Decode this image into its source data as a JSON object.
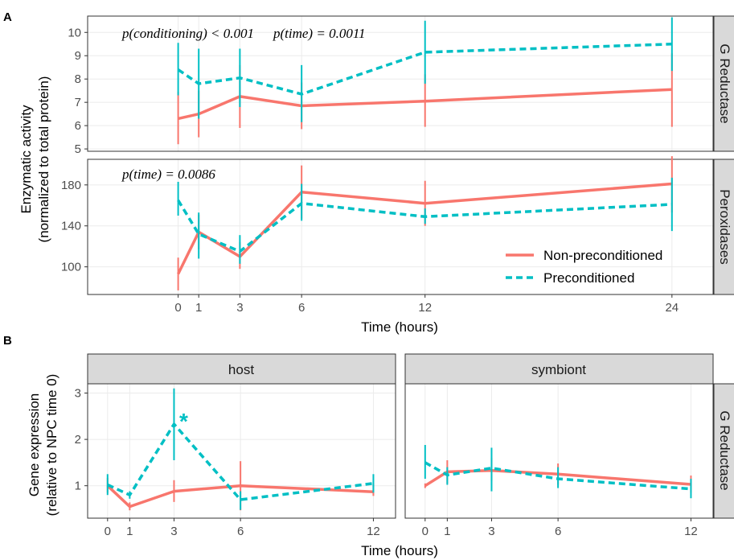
{
  "colors": {
    "npc": "#F8766D",
    "pc": "#00BFC4",
    "strip_bg": "#d9d9d9",
    "strip_border": "#333333",
    "panel_border": "#333333",
    "grid": "#ebebeb"
  },
  "panel_letters": {
    "a": "A",
    "b": "B"
  },
  "legend": {
    "npc": "Non-preconditioned",
    "pc": "Preconditioned"
  },
  "chart_data": [
    {
      "type": "line",
      "panel": "A",
      "facet": "G Reductase",
      "annotation": "p(conditioning) < 0.001",
      "annotation2": "p(time) = 0.0011",
      "ylabel_line1": "Enzymatic activity",
      "ylabel_line2": "(normalized to total protein)",
      "ylim": [
        4.9,
        10.7
      ],
      "yticks": [
        5,
        6,
        7,
        8,
        9,
        10
      ],
      "x": [
        0,
        1,
        3,
        6,
        12,
        24
      ],
      "series": [
        {
          "name": "Non-preconditioned",
          "values": [
            6.3,
            6.5,
            7.25,
            6.85,
            7.05,
            7.55
          ],
          "err_low": [
            5.2,
            5.5,
            5.9,
            5.85,
            5.95,
            5.95
          ],
          "err_high": [
            7.45,
            7.5,
            8.6,
            7.85,
            8.2,
            9.1
          ]
        },
        {
          "name": "Preconditioned",
          "values": [
            8.4,
            7.8,
            8.05,
            7.35,
            9.15,
            9.5
          ],
          "err_low": [
            7.3,
            6.3,
            6.8,
            6.15,
            7.8,
            8.35
          ],
          "err_high": [
            9.55,
            9.3,
            9.3,
            8.6,
            10.5,
            10.65
          ]
        }
      ]
    },
    {
      "type": "line",
      "panel": "A",
      "facet": "Peroxidases",
      "annotation": "p(time) = 0.0086",
      "ylim": [
        73,
        205
      ],
      "yticks": [
        100,
        140,
        180
      ],
      "xlabel": "Time (hours)",
      "xticks": [
        0,
        1,
        3,
        6,
        12,
        24
      ],
      "x": [
        0,
        1,
        3,
        6,
        12,
        24
      ],
      "series": [
        {
          "name": "Non-preconditioned",
          "values": [
            93,
            134,
            110,
            173,
            162,
            181
          ],
          "err_low": [
            77,
            117,
            98,
            147,
            140,
            153
          ],
          "err_high": [
            109,
            151,
            124,
            199,
            184,
            208
          ]
        },
        {
          "name": "Preconditioned",
          "values": [
            165,
            132,
            115,
            162,
            149,
            161
          ],
          "err_low": [
            150,
            108,
            103,
            145,
            142,
            135
          ],
          "err_high": [
            183,
            153,
            131,
            181,
            157,
            187
          ]
        }
      ]
    },
    {
      "type": "line",
      "panel": "B",
      "facet": "host",
      "ylabel_line1": "Gene expression",
      "ylabel_line2": "(relative to NPC time 0)",
      "ylim": [
        0.3,
        3.2
      ],
      "yticks": [
        1,
        2,
        3
      ],
      "xticks": [
        0,
        1,
        3,
        6,
        12
      ],
      "x": [
        0,
        1,
        3,
        6,
        12
      ],
      "annotation": "*",
      "series": [
        {
          "name": "Non-preconditioned",
          "values": [
            1.0,
            0.55,
            0.88,
            1.0,
            0.87
          ],
          "err_low": [
            0.85,
            0.47,
            0.65,
            0.47,
            0.78
          ],
          "err_high": [
            1.17,
            0.64,
            1.12,
            1.53,
            1.05
          ]
        },
        {
          "name": "Preconditioned",
          "values": [
            1.02,
            0.8,
            2.33,
            0.7,
            1.05
          ],
          "err_low": [
            0.8,
            0.72,
            1.55,
            0.48,
            0.85
          ],
          "err_high": [
            1.25,
            0.88,
            3.1,
            0.88,
            1.25
          ]
        }
      ]
    },
    {
      "type": "line",
      "panel": "B",
      "facet": "symbiont",
      "facet_right": "G Reductase",
      "xlabel": "Time (hours)",
      "ylim": [
        0.3,
        3.2
      ],
      "xticks": [
        0,
        1,
        3,
        6,
        12
      ],
      "x": [
        0,
        1,
        3,
        6,
        12
      ],
      "series": [
        {
          "name": "Non-preconditioned",
          "values": [
            1.0,
            1.3,
            1.33,
            1.25,
            1.03
          ],
          "err_low": [
            0.95,
            1.05,
            1.1,
            1.02,
            0.85
          ],
          "err_high": [
            1.05,
            1.55,
            1.6,
            1.48,
            1.22
          ]
        },
        {
          "name": "Preconditioned",
          "values": [
            1.5,
            1.23,
            1.38,
            1.15,
            0.93
          ],
          "err_low": [
            1.15,
            1.02,
            0.88,
            0.95,
            0.73
          ],
          "err_high": [
            1.88,
            1.4,
            1.82,
            1.4,
            1.15
          ]
        }
      ]
    }
  ]
}
